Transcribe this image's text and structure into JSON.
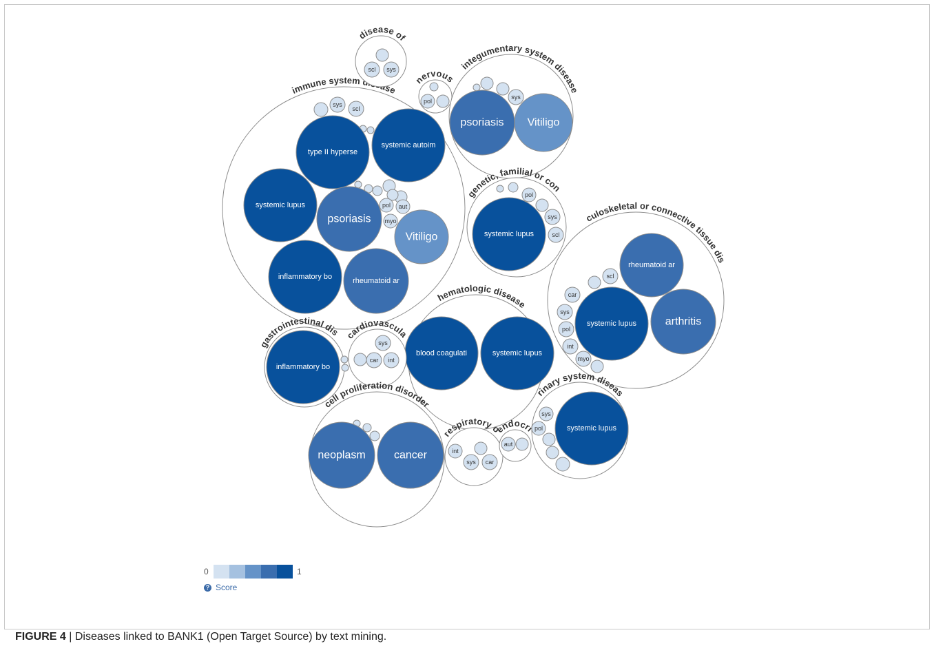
{
  "caption": {
    "label": "FIGURE 4",
    "separator": " | ",
    "text": "Diseases linked to BANK1 (Open Target Source) by text mining."
  },
  "legend": {
    "min_label": "0",
    "max_label": "1",
    "title": "Score",
    "colors": [
      "#d4e2f1",
      "#a5c1e0",
      "#6593c8",
      "#3a6eaf",
      "#08519c"
    ]
  },
  "chart_data": {
    "type": "bubble",
    "title": "",
    "color_scale": {
      "min": 0,
      "max": 1,
      "colors": [
        "#d4e2f1",
        "#a5c1e0",
        "#6593c8",
        "#3a6eaf",
        "#08519c"
      ]
    },
    "groups": [
      {
        "name": "immune system disease",
        "items": [
          {
            "label": "type II hyperse",
            "score": 1.0
          },
          {
            "label": "systemic autoim",
            "score": 1.0
          },
          {
            "label": "systemic lupus",
            "score": 1.0
          },
          {
            "label": "psoriasis",
            "score": 0.75
          },
          {
            "label": "Vitiligo",
            "score": 0.6
          },
          {
            "label": "inflammatory bo",
            "score": 1.0
          },
          {
            "label": "rheumatoid ar",
            "score": 0.75
          },
          {
            "label": "sys",
            "score": 0.1
          },
          {
            "label": "scl",
            "score": 0.1
          },
          {
            "label": "pol",
            "score": 0.1
          },
          {
            "label": "aut",
            "score": 0.1
          },
          {
            "label": "myo",
            "score": 0.1
          }
        ]
      },
      {
        "name": "disease of",
        "items": [
          {
            "label": "scl",
            "score": 0.1
          },
          {
            "label": "sys",
            "score": 0.1
          }
        ]
      },
      {
        "name": "nervous",
        "items": [
          {
            "label": "pol",
            "score": 0.1
          }
        ]
      },
      {
        "name": "integumentary system disease",
        "items": [
          {
            "label": "psoriasis",
            "score": 0.75
          },
          {
            "label": "Vitiligo",
            "score": 0.6
          },
          {
            "label": "sys",
            "score": 0.1
          }
        ]
      },
      {
        "name": "genetic, familial or con",
        "items": [
          {
            "label": "systemic lupus",
            "score": 1.0
          },
          {
            "label": "pol",
            "score": 0.1
          },
          {
            "label": "sys",
            "score": 0.1
          },
          {
            "label": "scl",
            "score": 0.1
          }
        ]
      },
      {
        "name": "musculoskeletal or connective tissue diseas",
        "items": [
          {
            "label": "rheumatoid ar",
            "score": 0.75
          },
          {
            "label": "systemic lupus",
            "score": 1.0
          },
          {
            "label": "arthritis",
            "score": 0.75
          },
          {
            "label": "scl",
            "score": 0.1
          },
          {
            "label": "car",
            "score": 0.1
          },
          {
            "label": "sys",
            "score": 0.1
          },
          {
            "label": "pol",
            "score": 0.1
          },
          {
            "label": "int",
            "score": 0.1
          },
          {
            "label": "myo",
            "score": 0.1
          }
        ]
      },
      {
        "name": "hematologic disease",
        "items": [
          {
            "label": "blood coagulati",
            "score": 1.0
          },
          {
            "label": "systemic lupus",
            "score": 1.0
          }
        ]
      },
      {
        "name": "gastrointestinal dis",
        "items": [
          {
            "label": "inflammatory bo",
            "score": 1.0
          }
        ]
      },
      {
        "name": "cardiovascula",
        "items": [
          {
            "label": "sys",
            "score": 0.1
          },
          {
            "label": "car",
            "score": 0.1
          },
          {
            "label": "int",
            "score": 0.1
          }
        ]
      },
      {
        "name": "cell proliferation disorder",
        "items": [
          {
            "label": "neoplasm",
            "score": 0.75
          },
          {
            "label": "cancer",
            "score": 0.75
          }
        ]
      },
      {
        "name": "respiratory o",
        "items": [
          {
            "label": "int",
            "score": 0.1
          },
          {
            "label": "sys",
            "score": 0.1
          },
          {
            "label": "car",
            "score": 0.1
          }
        ]
      },
      {
        "name": "endocri",
        "items": [
          {
            "label": "aut",
            "score": 0.1
          }
        ]
      },
      {
        "name": "urinary system disease",
        "items": [
          {
            "label": "systemic lupus",
            "score": 1.0
          },
          {
            "label": "sys",
            "score": 0.1
          },
          {
            "label": "pol",
            "score": 0.1
          }
        ]
      }
    ]
  }
}
